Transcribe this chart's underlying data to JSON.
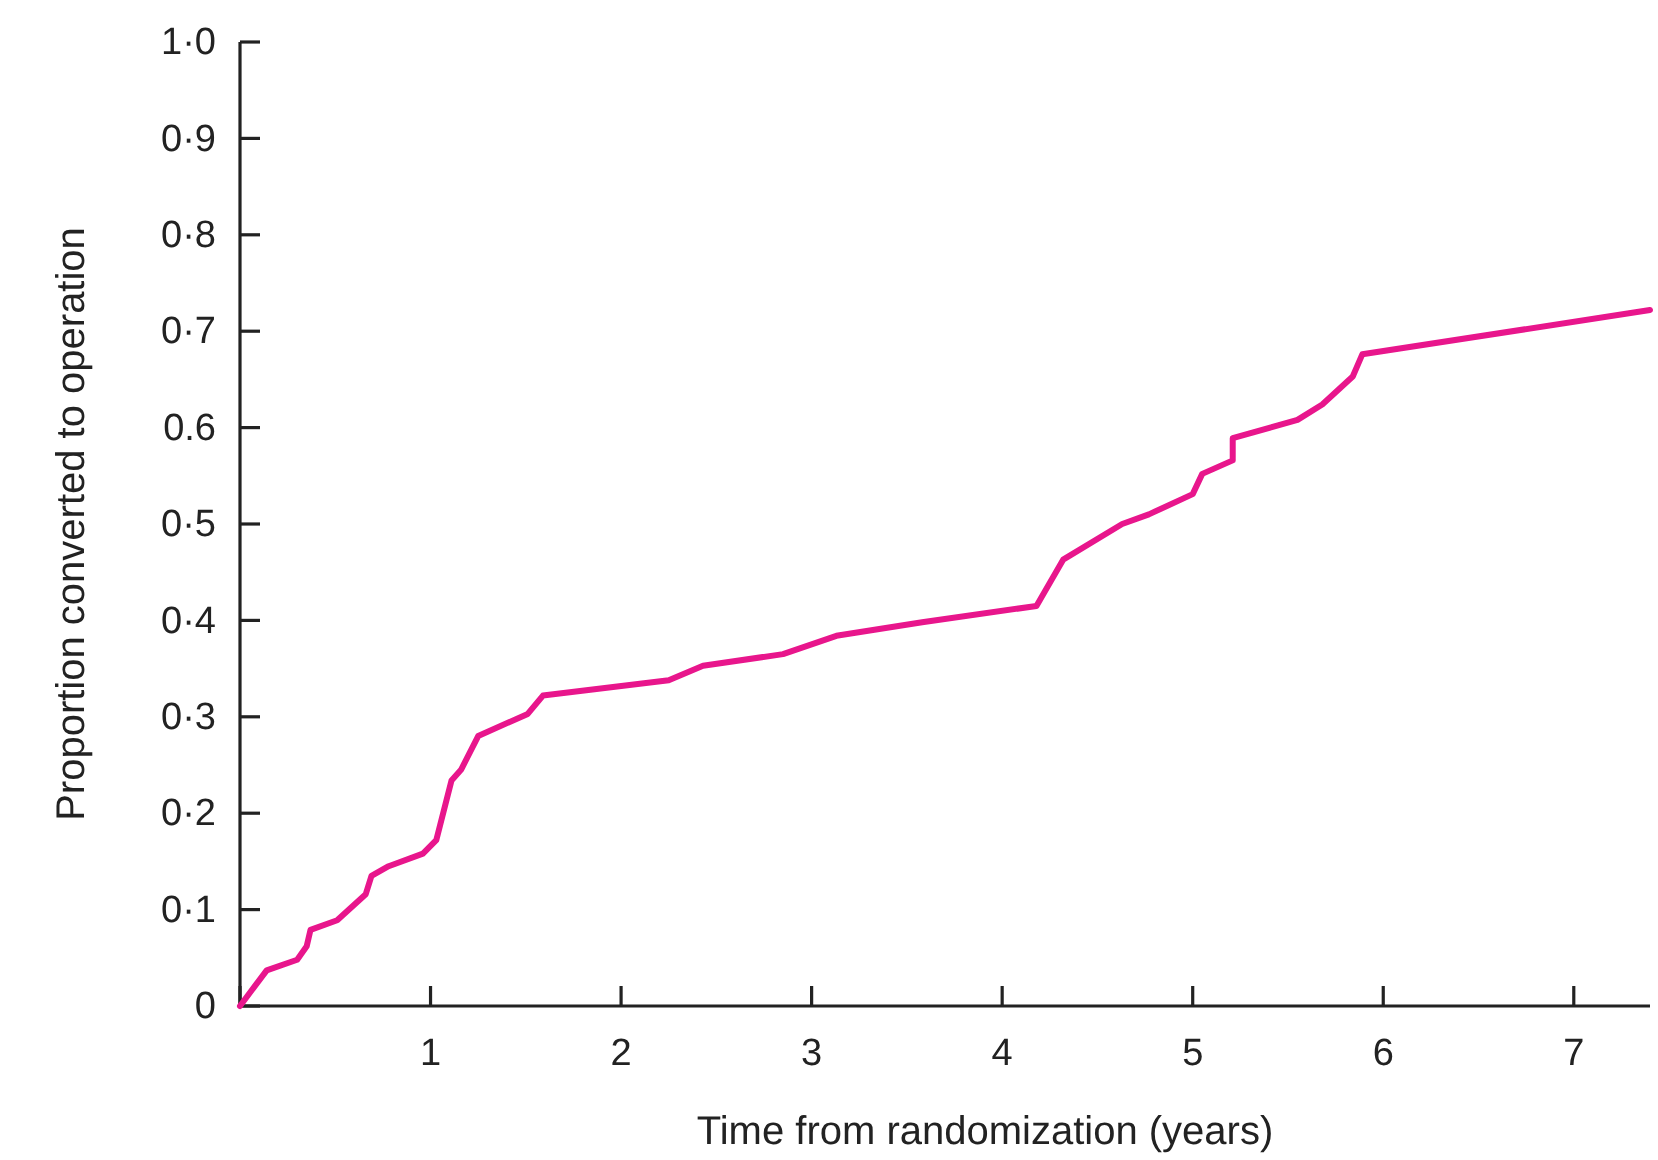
{
  "chart_data": {
    "type": "line",
    "xlabel": "Time from randomization (years)",
    "ylabel": "Proportion converted to operation",
    "xlim": [
      0,
      7.4
    ],
    "xticks": [
      {
        "value": 0,
        "label": null
      },
      1,
      2,
      3,
      4,
      5,
      6,
      7
    ],
    "ylim": [
      0,
      1
    ],
    "yticks": [
      {
        "value": 0,
        "label": "0"
      },
      {
        "value": 0.1,
        "label": "0·1"
      },
      {
        "value": 0.2,
        "label": "0·2"
      },
      {
        "value": 0.3,
        "label": "0·3"
      },
      {
        "value": 0.4,
        "label": "0·4"
      },
      {
        "value": 0.5,
        "label": "0·5"
      },
      {
        "value": 0.6,
        "label": "0.6"
      },
      {
        "value": 0.7,
        "label": "0·7"
      },
      {
        "value": 0.8,
        "label": "0·8"
      },
      {
        "value": 0.9,
        "label": "0·9"
      },
      {
        "value": 1,
        "label": "1·0"
      }
    ],
    "grid": false,
    "line_style": "solid",
    "series": [
      {
        "color": "#e8168c",
        "x": [
          0,
          0.14,
          0.3,
          0.35,
          0.37,
          0.51,
          0.66,
          0.69,
          0.78,
          0.96,
          1.03,
          1.11,
          1.16,
          1.25,
          1.51,
          1.59,
          2.25,
          2.43,
          2.85,
          3.13,
          3.58,
          4.18,
          4.32,
          4.63,
          4.77,
          5.0,
          5.05,
          5.21,
          5.21,
          5.55,
          5.68,
          5.84,
          5.89,
          7.4
        ],
        "values": [
          0,
          0.037,
          0.048,
          0.062,
          0.079,
          0.089,
          0.116,
          0.135,
          0.145,
          0.158,
          0.172,
          0.234,
          0.245,
          0.28,
          0.303,
          0.322,
          0.338,
          0.353,
          0.365,
          0.384,
          0.398,
          0.415,
          0.463,
          0.5,
          0.51,
          0.531,
          0.552,
          0.566,
          0.589,
          0.608,
          0.624,
          0.653,
          0.676,
          0.722
        ]
      }
    ]
  }
}
